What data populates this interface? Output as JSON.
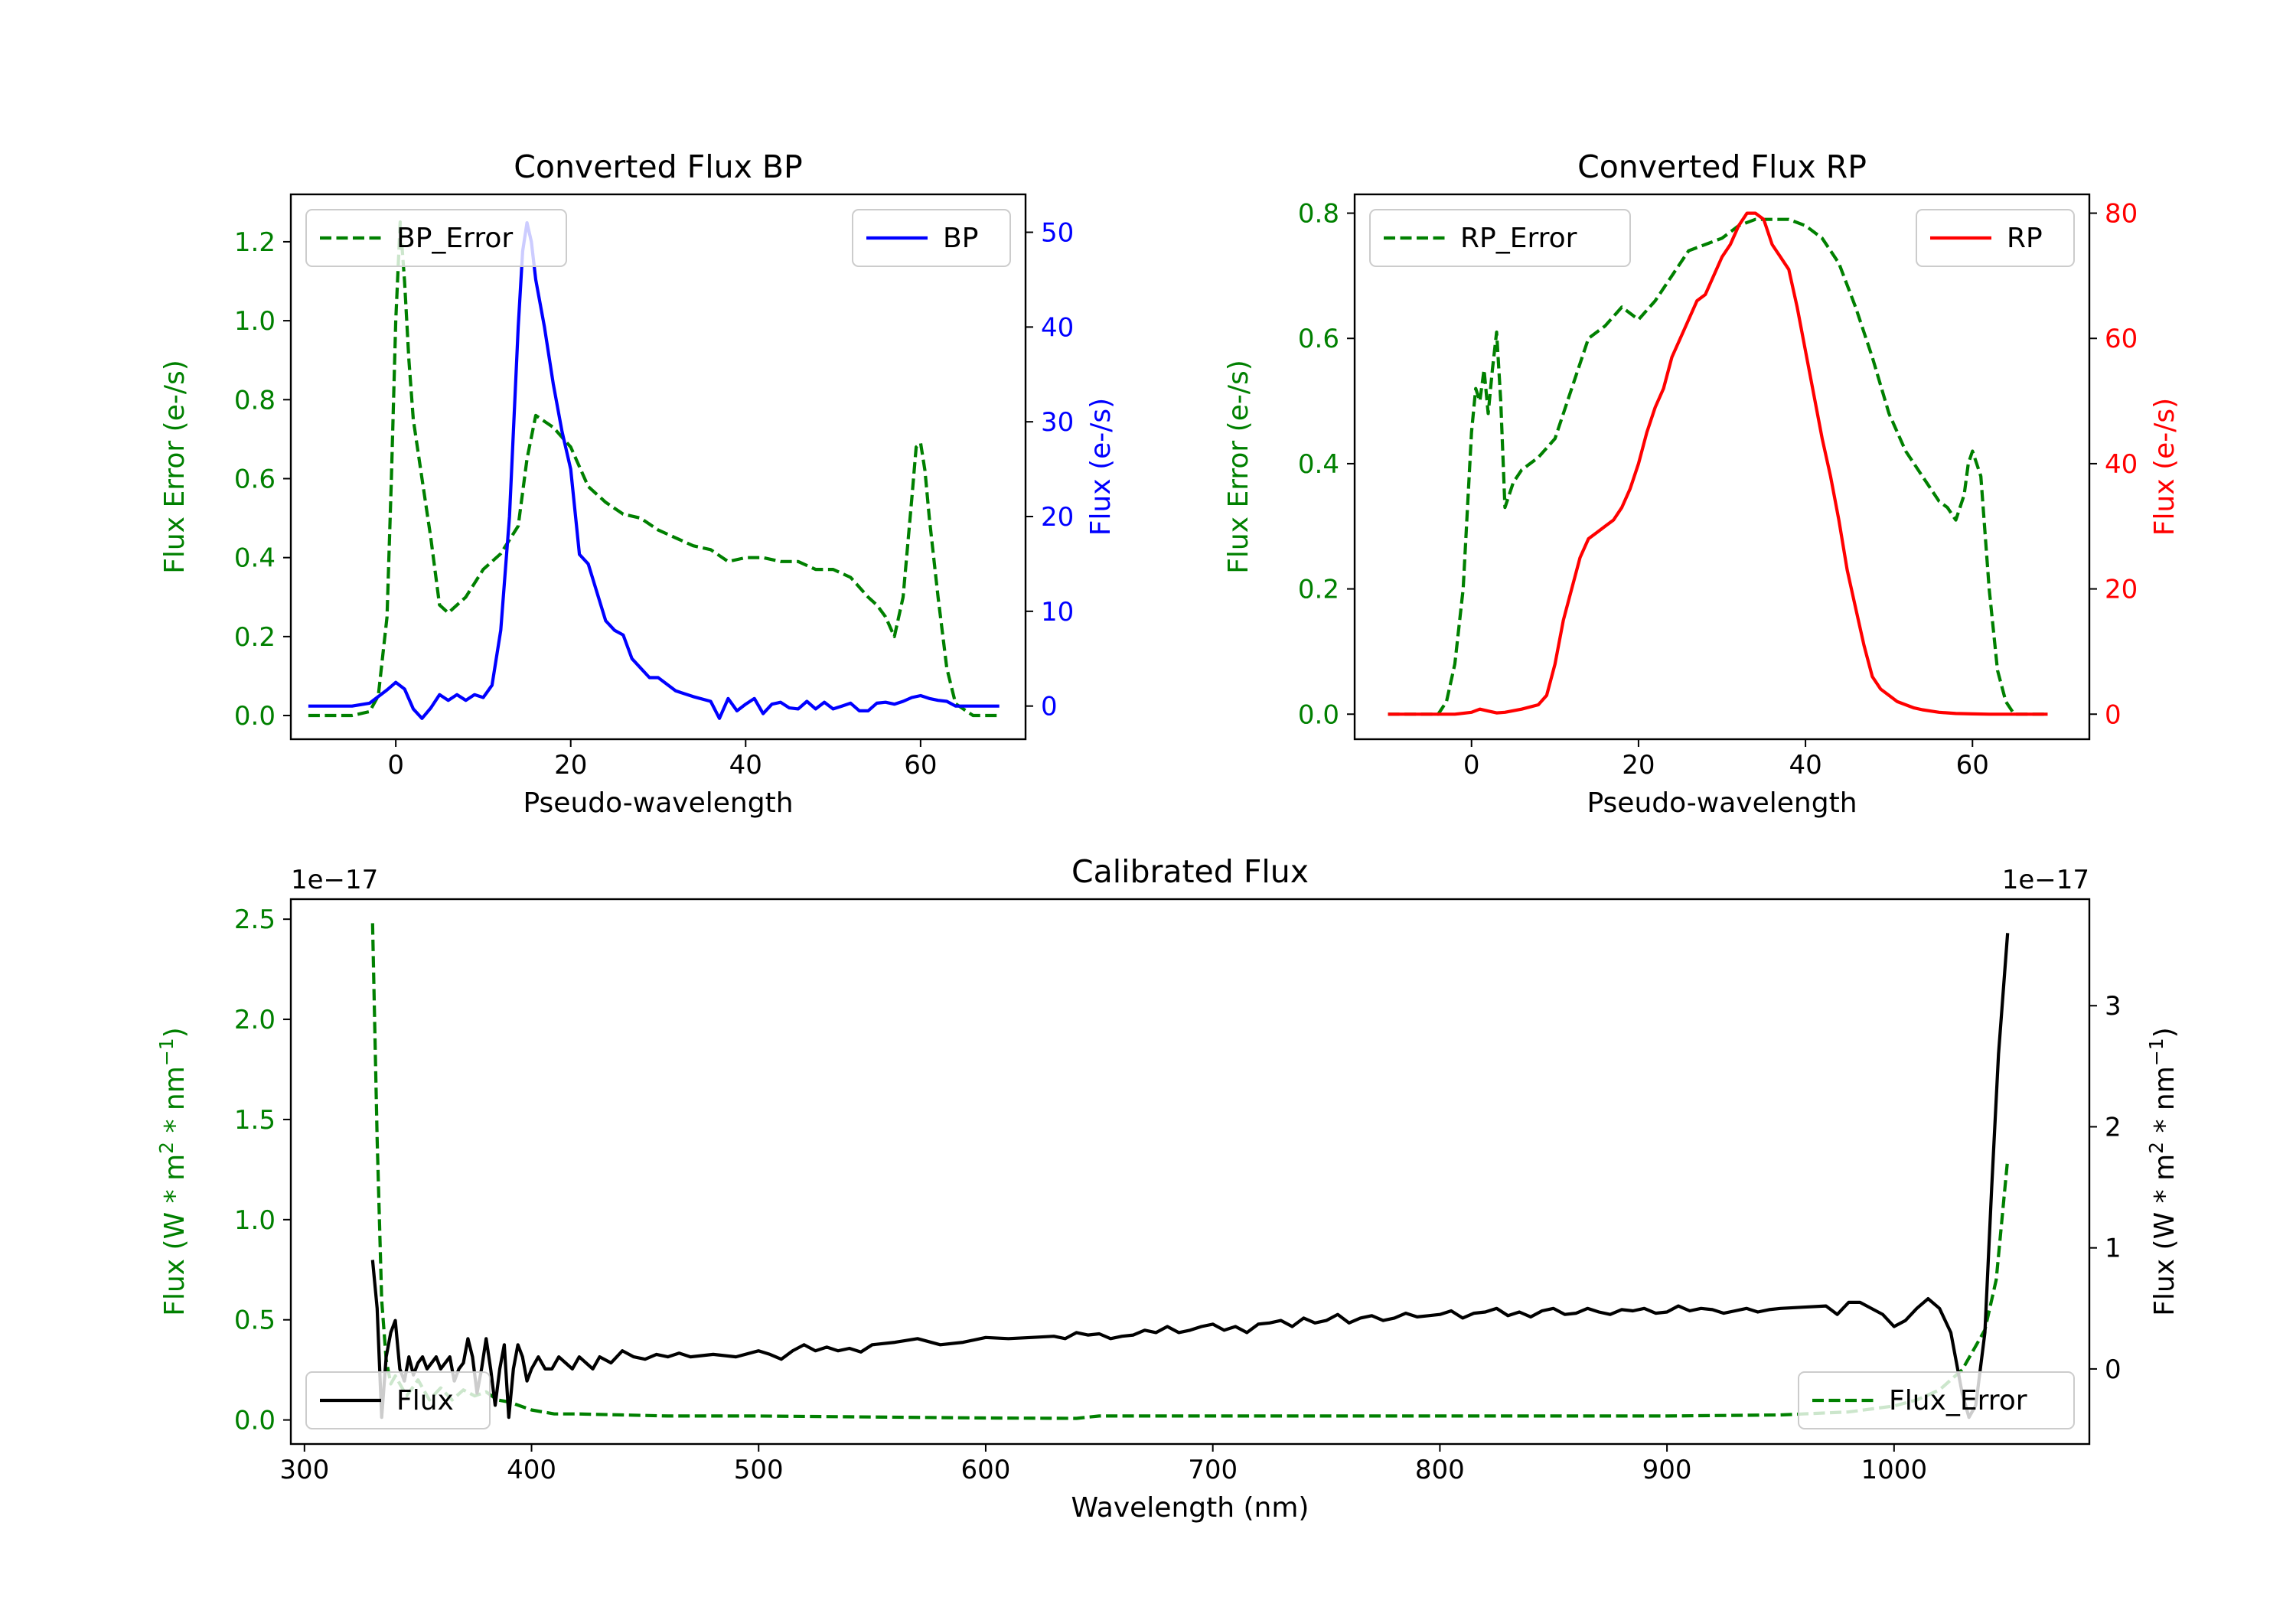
{
  "colors": {
    "bp": "#0000ff",
    "rp": "#ff0000",
    "error": "#008000",
    "flux": "#000000",
    "axis": "#000000"
  },
  "chart_data": [
    {
      "id": "bp",
      "type": "line",
      "title": "Converted Flux BP",
      "xlabel": "Pseudo-wavelength",
      "ylabel_left": "Flux Error (e-/s)",
      "ylabel_right": "Flux (e-/s)",
      "xlim": [
        -12,
        72
      ],
      "ylim_left": [
        -0.06,
        1.32
      ],
      "ylim_right": [
        -3.5,
        54
      ],
      "xticks": [
        0,
        20,
        40,
        60
      ],
      "yticks_left": [
        0.0,
        0.2,
        0.4,
        0.6,
        0.8,
        1.0,
        1.2
      ],
      "yticks_right": [
        0,
        10,
        20,
        30,
        40,
        50
      ],
      "legend_left": {
        "label": "BP_Error",
        "position": "upper-left"
      },
      "legend_right": {
        "label": "BP",
        "position": "upper-right"
      },
      "series": [
        {
          "name": "BP_Error",
          "axis": "left",
          "style": "dashed",
          "color_key": "error",
          "x": [
            -10,
            -5,
            -3,
            -2,
            -1,
            -0.5,
            0,
            0.5,
            1,
            1.5,
            2,
            3,
            4,
            5,
            6,
            8,
            10,
            12,
            14,
            15,
            16,
            18,
            20,
            22,
            24,
            26,
            28,
            30,
            32,
            34,
            36,
            38,
            40,
            42,
            44,
            46,
            48,
            50,
            52,
            54,
            55,
            56,
            57,
            58,
            59,
            59.5,
            60,
            60.5,
            61,
            62,
            63,
            64,
            66,
            69
          ],
          "y": [
            0.0,
            0.0,
            0.01,
            0.05,
            0.25,
            0.6,
            1.0,
            1.25,
            1.1,
            0.9,
            0.75,
            0.6,
            0.45,
            0.28,
            0.26,
            0.3,
            0.37,
            0.41,
            0.48,
            0.65,
            0.76,
            0.73,
            0.68,
            0.58,
            0.54,
            0.51,
            0.5,
            0.47,
            0.45,
            0.43,
            0.42,
            0.39,
            0.4,
            0.4,
            0.39,
            0.39,
            0.37,
            0.37,
            0.35,
            0.3,
            0.28,
            0.25,
            0.2,
            0.3,
            0.55,
            0.68,
            0.69,
            0.62,
            0.5,
            0.3,
            0.12,
            0.03,
            0.0,
            0.0
          ]
        },
        {
          "name": "BP",
          "axis": "right",
          "style": "solid",
          "color_key": "bp",
          "x": [
            -10,
            -5,
            -3,
            -1,
            0,
            1,
            2,
            3,
            4,
            5,
            6,
            7,
            8,
            9,
            10,
            11,
            12,
            13,
            14,
            14.5,
            15,
            15.5,
            16,
            17,
            18,
            19,
            20,
            21,
            22,
            23,
            24,
            25,
            26,
            27,
            28,
            29,
            30,
            32,
            34,
            36,
            37,
            38,
            39,
            40,
            41,
            42,
            43,
            44,
            45,
            46,
            47,
            48,
            49,
            50,
            51,
            52,
            53,
            54,
            55,
            56,
            57,
            58,
            59,
            60,
            61,
            62,
            63,
            64,
            66,
            69
          ],
          "y": [
            0,
            0,
            0.3,
            1.7,
            2.5,
            1.8,
            -0.3,
            -1.3,
            -0.2,
            1.2,
            0.6,
            1.2,
            0.6,
            1.2,
            0.9,
            2.2,
            8,
            20,
            40,
            48,
            51,
            49,
            45,
            40,
            34,
            29,
            25,
            16,
            15,
            12,
            9,
            8,
            7.5,
            5,
            4,
            3,
            3,
            1.6,
            1,
            0.5,
            -1.3,
            0.8,
            -0.5,
            0.2,
            0.8,
            -0.8,
            0.2,
            0.4,
            -0.2,
            -0.3,
            0.5,
            -0.3,
            0.4,
            -0.3,
            0,
            0.3,
            -0.5,
            -0.5,
            0.3,
            0.4,
            0.2,
            0.5,
            0.9,
            1.1,
            0.8,
            0.6,
            0.5,
            0,
            0,
            0
          ]
        }
      ]
    },
    {
      "id": "rp",
      "type": "line",
      "title": "Converted Flux RP",
      "xlabel": "Pseudo-wavelength",
      "ylabel_left": "Flux Error (e-/s)",
      "ylabel_right": "Flux (e-/s)",
      "xlim": [
        -14,
        74
      ],
      "ylim_left": [
        -0.04,
        0.83
      ],
      "ylim_right": [
        -4,
        83
      ],
      "xticks": [
        0,
        20,
        40,
        60
      ],
      "yticks_left": [
        0.0,
        0.2,
        0.4,
        0.6,
        0.8
      ],
      "yticks_right": [
        0,
        20,
        40,
        60,
        80
      ],
      "legend_left": {
        "label": "RP_Error",
        "position": "upper-left"
      },
      "legend_right": {
        "label": "RP",
        "position": "upper-right"
      },
      "series": [
        {
          "name": "RP_Error",
          "axis": "left",
          "style": "dashed",
          "color_key": "error",
          "x": [
            -10,
            -5,
            -4,
            -3,
            -2,
            -1,
            0,
            0.5,
            1,
            1.5,
            2,
            2.5,
            3,
            3.5,
            4,
            5,
            6,
            8,
            10,
            12,
            14,
            16,
            18,
            20,
            22,
            24,
            26,
            28,
            30,
            32,
            34,
            36,
            38,
            40,
            42,
            44,
            46,
            48,
            50,
            52,
            54,
            55,
            56,
            57,
            58,
            59,
            59.5,
            60,
            61,
            62,
            63,
            64,
            65,
            69
          ],
          "y": [
            0.0,
            0.0,
            0.0,
            0.02,
            0.08,
            0.2,
            0.45,
            0.52,
            0.5,
            0.55,
            0.48,
            0.55,
            0.61,
            0.5,
            0.33,
            0.37,
            0.39,
            0.41,
            0.44,
            0.52,
            0.6,
            0.62,
            0.65,
            0.63,
            0.66,
            0.7,
            0.74,
            0.75,
            0.76,
            0.78,
            0.79,
            0.79,
            0.79,
            0.78,
            0.76,
            0.72,
            0.65,
            0.57,
            0.48,
            0.42,
            0.38,
            0.36,
            0.34,
            0.33,
            0.31,
            0.35,
            0.4,
            0.42,
            0.38,
            0.2,
            0.07,
            0.02,
            0.0,
            0.0
          ]
        },
        {
          "name": "RP",
          "axis": "right",
          "style": "solid",
          "color_key": "rp",
          "x": [
            -10,
            -5,
            -2,
            0,
            1,
            2,
            3,
            4,
            6,
            8,
            9,
            10,
            11,
            12,
            13,
            14,
            15,
            16,
            17,
            18,
            19,
            20,
            21,
            22,
            23,
            24,
            25,
            26,
            27,
            28,
            29,
            30,
            31,
            32,
            33,
            34,
            35,
            36,
            37,
            38,
            39,
            40,
            41,
            42,
            43,
            44,
            45,
            46,
            47,
            48,
            49,
            50,
            51,
            52,
            53,
            54,
            55,
            56,
            58,
            60,
            62,
            65,
            69
          ],
          "y": [
            0,
            0,
            0,
            0.3,
            0.8,
            0.5,
            0.2,
            0.3,
            0.8,
            1.5,
            3,
            8,
            15,
            20,
            25,
            28,
            29,
            30,
            31,
            33,
            36,
            40,
            45,
            49,
            52,
            57,
            60,
            63,
            66,
            67,
            70,
            73,
            75,
            78,
            80,
            80,
            79,
            75,
            73,
            71,
            65,
            58,
            51,
            44,
            38,
            31,
            23,
            17,
            11,
            6,
            4,
            3,
            2,
            1.5,
            1,
            0.7,
            0.5,
            0.3,
            0.1,
            0.05,
            0,
            0,
            0
          ]
        }
      ]
    },
    {
      "id": "calibrated",
      "type": "line",
      "title": "Calibrated Flux",
      "xlabel": "Wavelength (nm)",
      "ylabel_left": "Flux (W * m",
      "ylabel_right": "Flux (W * m",
      "ylabel_mid": " * m",
      "ylabel_end": ")",
      "ylabel_sup2": "2",
      "ylabel_supm1": "−1",
      "ylabel_nm": " * nm",
      "offset_left": "1e−17",
      "offset_right": "1e−17",
      "xlim": [
        294,
        1086
      ],
      "ylim_left": [
        -0.12,
        2.6
      ],
      "ylim_right": [
        -0.62,
        3.88
      ],
      "xticks": [
        300,
        400,
        500,
        600,
        700,
        800,
        900,
        1000
      ],
      "yticks_left": [
        0.0,
        0.5,
        1.0,
        1.5,
        2.0,
        2.5
      ],
      "yticks_right": [
        0,
        1,
        2,
        3
      ],
      "legend_left": {
        "label": "Flux",
        "position": "lower-left"
      },
      "legend_right": {
        "label": "Flux_Error",
        "position": "lower-right"
      },
      "series": [
        {
          "name": "Flux_Error",
          "axis": "left",
          "style": "dashed",
          "color_key": "error",
          "x": [
            330,
            332,
            334,
            336,
            338,
            340,
            345,
            350,
            355,
            360,
            365,
            370,
            375,
            380,
            385,
            390,
            400,
            410,
            420,
            440,
            460,
            500,
            550,
            600,
            640,
            650,
            700,
            800,
            900,
            950,
            980,
            1000,
            1010,
            1020,
            1030,
            1035,
            1040,
            1045,
            1050
          ],
          "y": [
            2.48,
            1.4,
            0.6,
            0.3,
            0.18,
            0.22,
            0.12,
            0.2,
            0.1,
            0.16,
            0.1,
            0.15,
            0.12,
            0.14,
            0.1,
            0.09,
            0.05,
            0.03,
            0.03,
            0.025,
            0.02,
            0.02,
            0.015,
            0.01,
            0.008,
            0.02,
            0.02,
            0.02,
            0.02,
            0.025,
            0.04,
            0.07,
            0.1,
            0.15,
            0.25,
            0.35,
            0.45,
            0.7,
            1.3
          ]
        },
        {
          "name": "Flux",
          "axis": "right",
          "style": "solid",
          "color_key": "flux",
          "x": [
            330,
            332,
            334,
            336,
            338,
            340,
            342,
            344,
            346,
            348,
            350,
            352,
            354,
            356,
            358,
            360,
            362,
            364,
            366,
            368,
            370,
            372,
            374,
            376,
            378,
            380,
            382,
            384,
            386,
            388,
            390,
            392,
            394,
            396,
            398,
            400,
            403,
            406,
            409,
            412,
            415,
            418,
            421,
            424,
            427,
            430,
            435,
            440,
            445,
            450,
            455,
            460,
            465,
            470,
            480,
            490,
            500,
            505,
            510,
            515,
            520,
            525,
            530,
            535,
            540,
            545,
            550,
            560,
            570,
            580,
            590,
            600,
            610,
            620,
            630,
            635,
            640,
            645,
            650,
            655,
            660,
            665,
            670,
            675,
            680,
            685,
            690,
            695,
            700,
            705,
            710,
            715,
            720,
            725,
            730,
            735,
            740,
            745,
            750,
            755,
            760,
            765,
            770,
            775,
            780,
            785,
            790,
            795,
            800,
            805,
            810,
            815,
            820,
            825,
            830,
            835,
            840,
            845,
            850,
            855,
            860,
            865,
            870,
            875,
            880,
            885,
            890,
            895,
            900,
            905,
            910,
            915,
            920,
            925,
            930,
            935,
            940,
            945,
            950,
            960,
            970,
            975,
            980,
            985,
            990,
            995,
            1000,
            1005,
            1010,
            1015,
            1020,
            1025,
            1030,
            1033,
            1036,
            1040,
            1043,
            1046,
            1050
          ],
          "y": [
            0.9,
            0.5,
            -0.4,
            0.1,
            0.3,
            0.4,
            0.0,
            -0.1,
            0.1,
            -0.05,
            0.05,
            0.1,
            0.0,
            0.05,
            0.1,
            0.0,
            0.05,
            0.1,
            -0.1,
            0.0,
            0.05,
            0.25,
            0.1,
            -0.2,
            0.0,
            0.25,
            0.0,
            -0.3,
            0.0,
            0.2,
            -0.4,
            0.0,
            0.2,
            0.1,
            -0.1,
            0.0,
            0.1,
            0.0,
            0.0,
            0.1,
            0.05,
            0.0,
            0.1,
            0.05,
            0.0,
            0.1,
            0.05,
            0.15,
            0.1,
            0.08,
            0.12,
            0.1,
            0.13,
            0.1,
            0.12,
            0.1,
            0.15,
            0.12,
            0.08,
            0.15,
            0.2,
            0.15,
            0.18,
            0.15,
            0.17,
            0.14,
            0.2,
            0.22,
            0.25,
            0.2,
            0.22,
            0.26,
            0.25,
            0.26,
            0.27,
            0.25,
            0.3,
            0.28,
            0.29,
            0.25,
            0.27,
            0.28,
            0.32,
            0.3,
            0.35,
            0.3,
            0.32,
            0.35,
            0.37,
            0.32,
            0.35,
            0.3,
            0.37,
            0.38,
            0.4,
            0.35,
            0.42,
            0.38,
            0.4,
            0.45,
            0.38,
            0.42,
            0.44,
            0.4,
            0.42,
            0.46,
            0.43,
            0.44,
            0.45,
            0.48,
            0.42,
            0.46,
            0.47,
            0.5,
            0.44,
            0.47,
            0.43,
            0.48,
            0.5,
            0.45,
            0.46,
            0.5,
            0.47,
            0.45,
            0.49,
            0.48,
            0.5,
            0.46,
            0.47,
            0.52,
            0.48,
            0.5,
            0.49,
            0.46,
            0.48,
            0.5,
            0.47,
            0.49,
            0.5,
            0.51,
            0.52,
            0.45,
            0.55,
            0.55,
            0.5,
            0.45,
            0.35,
            0.4,
            0.5,
            0.58,
            0.5,
            0.3,
            -0.2,
            -0.4,
            -0.3,
            0.3,
            1.5,
            2.6,
            3.6
          ]
        }
      ]
    }
  ]
}
